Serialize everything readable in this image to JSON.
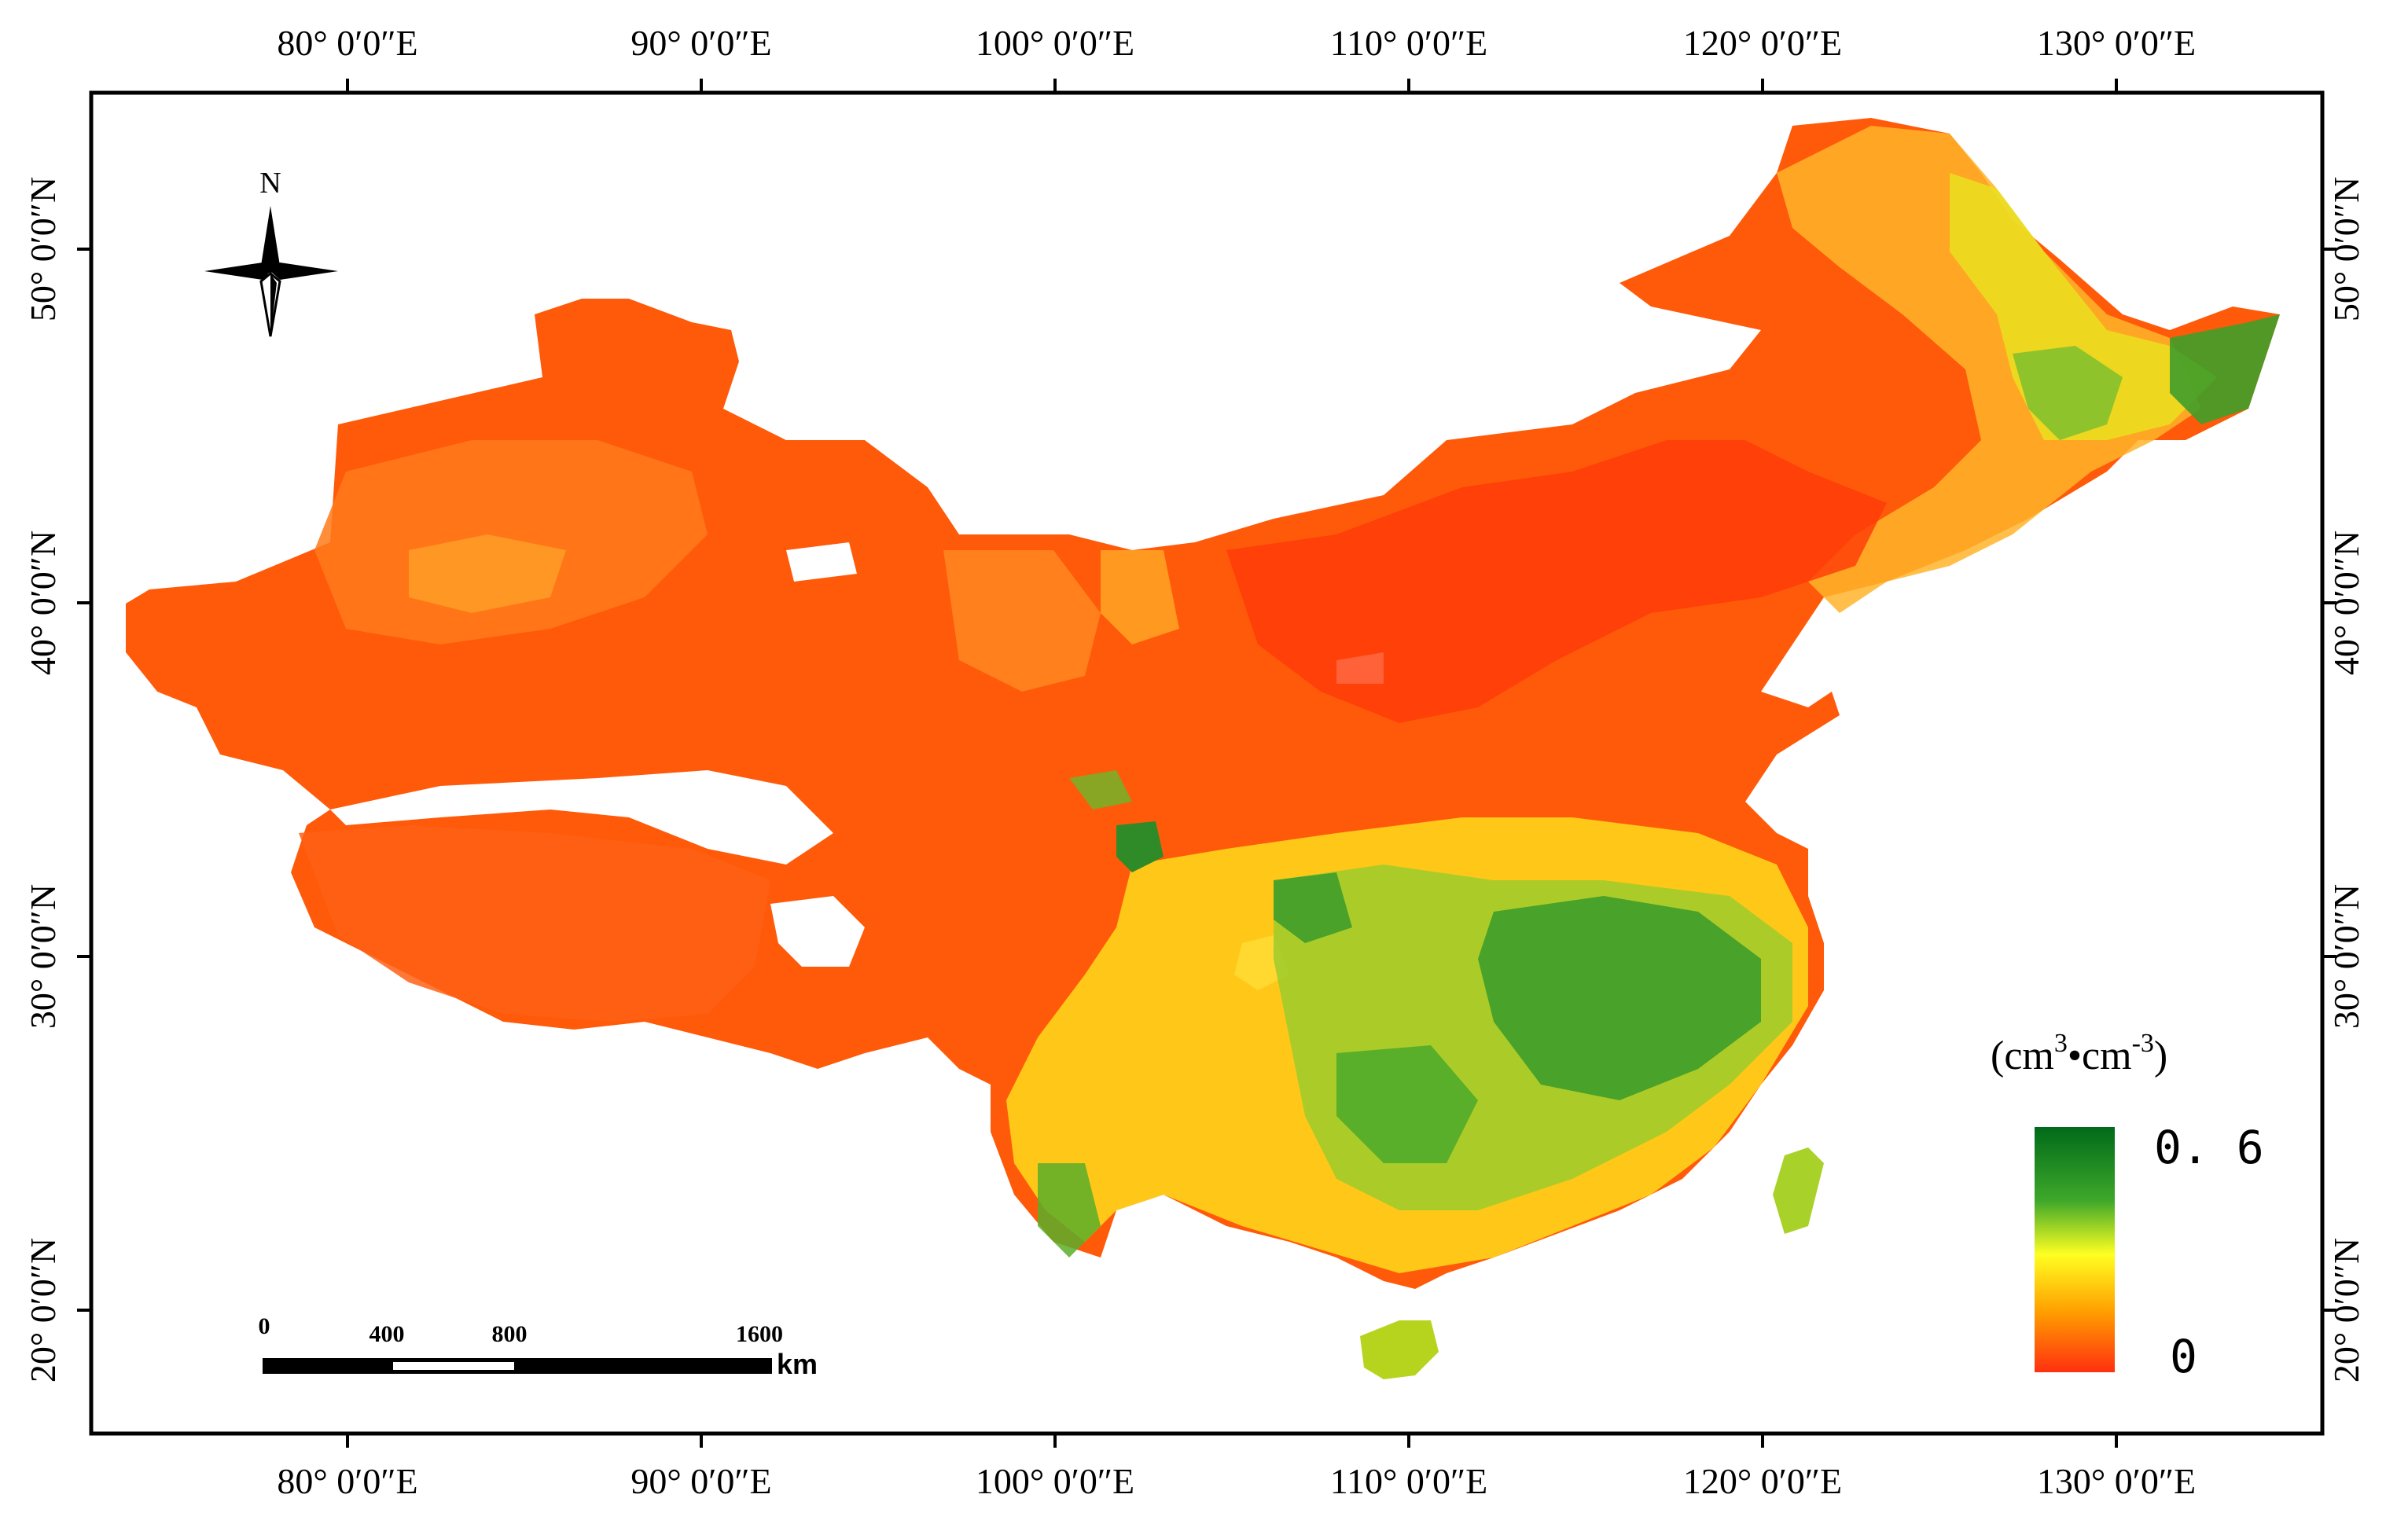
{
  "map": {
    "lon_labels": [
      "80° 0′0″E",
      "90° 0′0″E",
      "100° 0′0″E",
      "110° 0′0″E",
      "120° 0′0″E",
      "130° 0′0″E"
    ],
    "lat_labels": [
      "20° 0′0″N",
      "30° 0′0″N",
      "40° 0′0″N",
      "50° 0′0″N"
    ],
    "north_label": "N",
    "legend": {
      "unit_prefix": "(cm",
      "unit_sup1": "3",
      "unit_mid": "•cm",
      "unit_sup2": "-3",
      "unit_suffix": ")",
      "max_label": "0. 6",
      "min_label": "0",
      "colors": [
        "#006400",
        "#39a020",
        "#ffff00",
        "#ffa500",
        "#ff3000"
      ]
    },
    "scale_bar": {
      "ticks": [
        "0",
        "400",
        "800",
        "1600"
      ],
      "unit": "km"
    },
    "region_colors": {
      "dry": "#ff4500",
      "dry2": "#ff6a10",
      "mid": "#ff9a20",
      "moist": "#ffd21a",
      "yellow": "#f2ef1e",
      "wet": "#7cc230",
      "wetter": "#3a9e2a"
    }
  }
}
